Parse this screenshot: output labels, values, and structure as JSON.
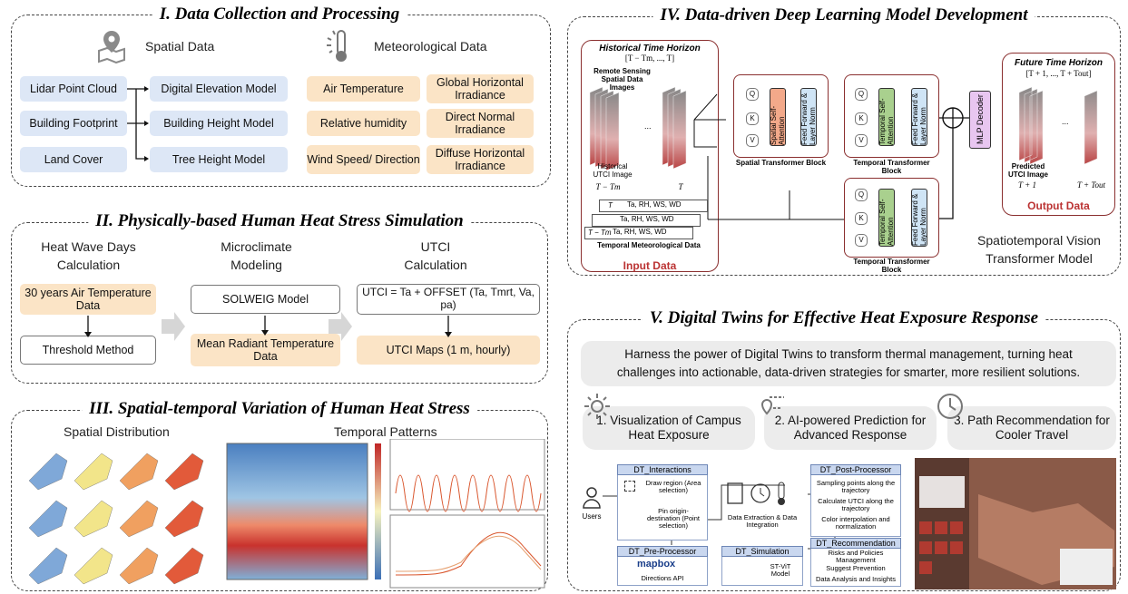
{
  "panel1": {
    "title": "I. Data Collection and Processing",
    "spatial_label": "Spatial Data",
    "meteo_label": "Meteorological Data",
    "spatial_inputs": [
      "Lidar Point Cloud",
      "Building Footprint",
      "Land Cover"
    ],
    "spatial_outputs": [
      "Digital Elevation Model",
      "Building Height Model",
      "Tree Height Model"
    ],
    "meteo_left": [
      "Air Temperature",
      "Relative humidity",
      "Wind Speed/ Direction"
    ],
    "meteo_right": [
      "Global Horizontal Irradiance",
      "Direct Normal Irradiance",
      "Diffuse Horizontal Irradiance"
    ]
  },
  "panel2": {
    "title": "II. Physically-based Human Heat Stress Simulation",
    "columns": [
      {
        "heading": "Heat Wave Days Calculation",
        "top": "30 years Air Temperature Data",
        "bottom": "Threshold Method"
      },
      {
        "heading": "Microclimate Modeling",
        "top": "SOLWEIG Model",
        "bottom": "Mean Radiant Temperature Data"
      },
      {
        "heading": "UTCI Calculation",
        "top": "UTCI = Ta + OFFSET (Ta, Tmrt, Va, pa)",
        "bottom": "UTCI Maps (1 m, hourly)"
      }
    ]
  },
  "panel3": {
    "title": "III. Spatial-temporal Variation of Human Heat Stress",
    "spatial_label": "Spatial Distribution",
    "temporal_label": "Temporal Patterns"
  },
  "panel4": {
    "title": "IV. Data-driven Deep Learning Model Development",
    "historical_title": "Historical Time Horizon",
    "historical_range": "[T − Tm, ..., T]",
    "remote_sensing": "Remote Sensing Spatial Data Images",
    "historical_utci": "Historical UTCI Image",
    "t_start": "T − Tm",
    "t_end": "T",
    "met_row": "Ta, RH, WS, WD",
    "met_t": "T",
    "met_tm": "T − Tm",
    "temporal_met": "Temporal Meteorological Data",
    "input_data": "Input Data",
    "q": "Q",
    "k": "K",
    "v": "V",
    "spatial_attention": "Spatial Self-Attention",
    "temporal_attention": "Temporal Self-Attention",
    "ffn": "Feed Forward & Layer Norm",
    "spatial_block": "Spatial Transformer Block",
    "temporal_block": "Temporal Transformer Block",
    "mlp": "MLP Decoder",
    "future_title": "Future Time Horizon",
    "future_range": "[T + 1, ..., T + Tout]",
    "predicted": "Predicted UTCI Image",
    "t_plus": "T + 1",
    "t_out": "T + Tout",
    "output_data": "Output Data",
    "model_name": "Spatiotemporal Vision Transformer Model"
  },
  "panel5": {
    "title": "V. Digital Twins for Effective Heat Exposure Response",
    "intro": "Harness the power of Digital Twins to transform thermal management, turning heat challenges into actionable, data-driven strategies for smarter, more resilient solutions.",
    "cards": [
      "1. Visualization of Campus Heat Exposure",
      "2. AI-powered Prediction for Advanced Response",
      "3. Path Recommendation for Cooler Travel"
    ],
    "users": "Users",
    "interactions": "DT_Interactions",
    "draw_region": "Draw region (Area selection)",
    "pin": "Pin origin-destination (Point selection)",
    "pre_processor": "DT_Pre-Processor",
    "mapbox": "mapbox",
    "directions": "Directions API",
    "simulation": "DT_Simulation",
    "stvit": "ST-ViT Model",
    "extraction": "Data Extraction & Data Integration",
    "post_processor": "DT_Post-Processor",
    "post_items": [
      "Sampling points along the trajectory",
      "Calculate UTCI along the trajectory",
      "Color interpolation and normalization"
    ],
    "recommendation": "DT_Recommendation",
    "rec_items": [
      "Risks and Policies Management",
      "Suggest Prevention",
      "Data Analysis and Insights"
    ]
  }
}
